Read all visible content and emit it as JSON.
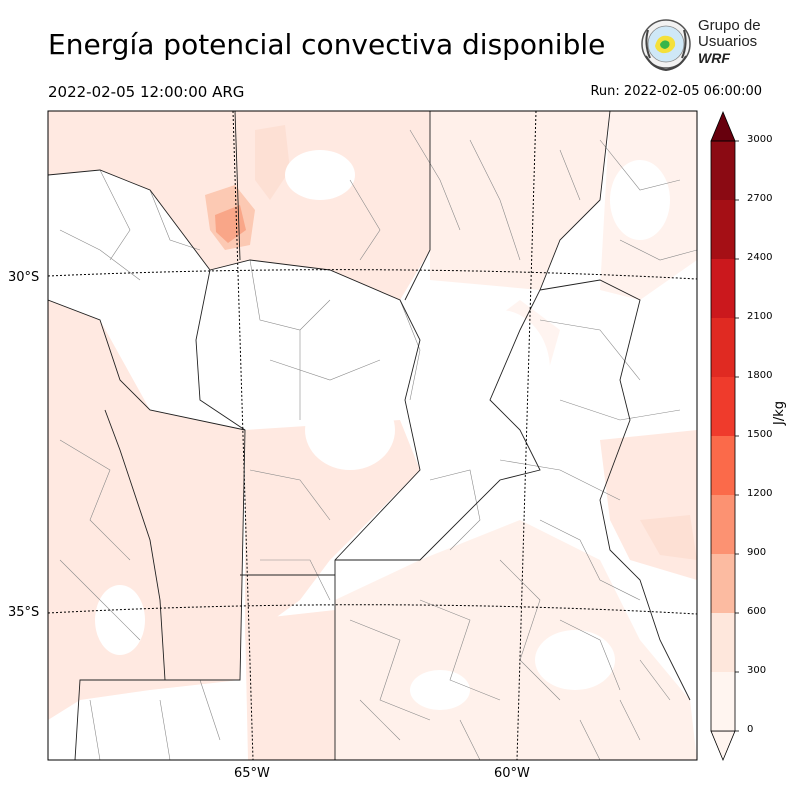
{
  "title": "Energía potencial convectiva disponible",
  "valid_time": "2022-02-05 12:00:00 ARG",
  "run_time": "Run: 2022-02-05 06:00:00",
  "logo": {
    "line1": "Grupo de",
    "line2": "Usuarios",
    "line3": "WRF",
    "icon": "wrf-users-group-emblem"
  },
  "latitude_labels": [
    "30°S",
    "35°S"
  ],
  "longitude_labels": [
    "65°W",
    "60°W"
  ],
  "colorbar": {
    "unit": "J/kg",
    "ticks": [
      "0",
      "300",
      "600",
      "900",
      "1200",
      "1500",
      "1800",
      "2100",
      "2400",
      "2700",
      "3000"
    ],
    "colors": [
      "#fff5f0",
      "#fee7dc",
      "#fcbba1",
      "#fc9272",
      "#fb6a4a",
      "#ef3b2c",
      "#e02a22",
      "#cb181d",
      "#a50f15",
      "#8b0a13",
      "#67000d"
    ],
    "extend": "both"
  },
  "field": {
    "name": "CAPE",
    "units": "J/kg",
    "min_shown": 0,
    "max_shown": 3000
  }
}
